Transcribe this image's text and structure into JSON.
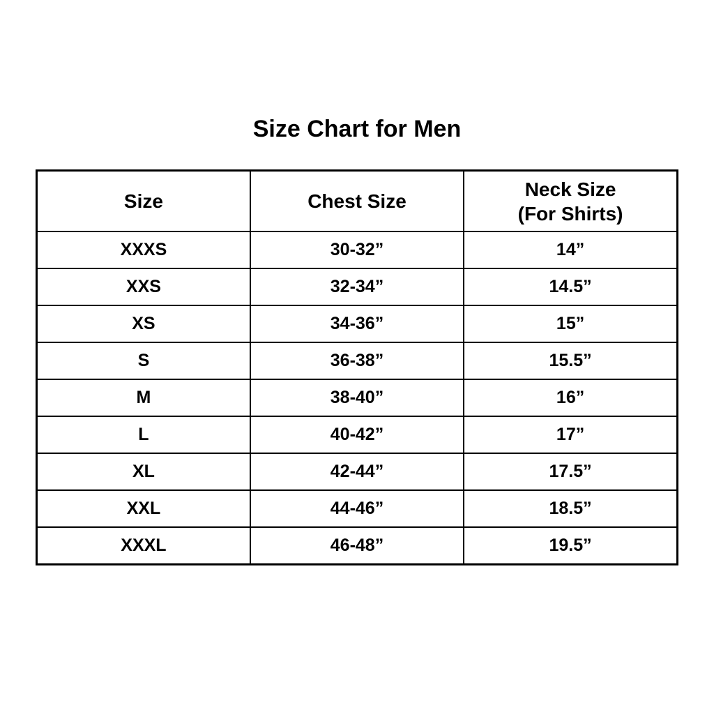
{
  "chart_data": {
    "type": "table",
    "title": "Size Chart for Men",
    "header": {
      "size": "Size",
      "chest": "Chest Size",
      "neck_line1": "Neck Size",
      "neck_line2": "(For Shirts)"
    },
    "columns": [
      "Size",
      "Chest Size",
      "Neck Size (For Shirts)"
    ],
    "rows": [
      {
        "size": "XXXS",
        "chest": "30-32”",
        "neck": "14”"
      },
      {
        "size": "XXS",
        "chest": "32-34”",
        "neck": "14.5”"
      },
      {
        "size": "XS",
        "chest": "34-36”",
        "neck": "15”"
      },
      {
        "size": "S",
        "chest": "36-38”",
        "neck": "15.5”"
      },
      {
        "size": "M",
        "chest": "38-40”",
        "neck": "16”"
      },
      {
        "size": "L",
        "chest": "40-42”",
        "neck": "17”"
      },
      {
        "size": "XL",
        "chest": "42-44”",
        "neck": "17.5”"
      },
      {
        "size": "XXL",
        "chest": "44-46”",
        "neck": "18.5”"
      },
      {
        "size": "XXXL",
        "chest": "46-48”",
        "neck": "19.5”"
      }
    ],
    "layout": {
      "grid": "on",
      "columns_equal_width": true
    },
    "colors": {
      "background": "#ffffff",
      "text": "#000000",
      "border": "#000000"
    }
  }
}
